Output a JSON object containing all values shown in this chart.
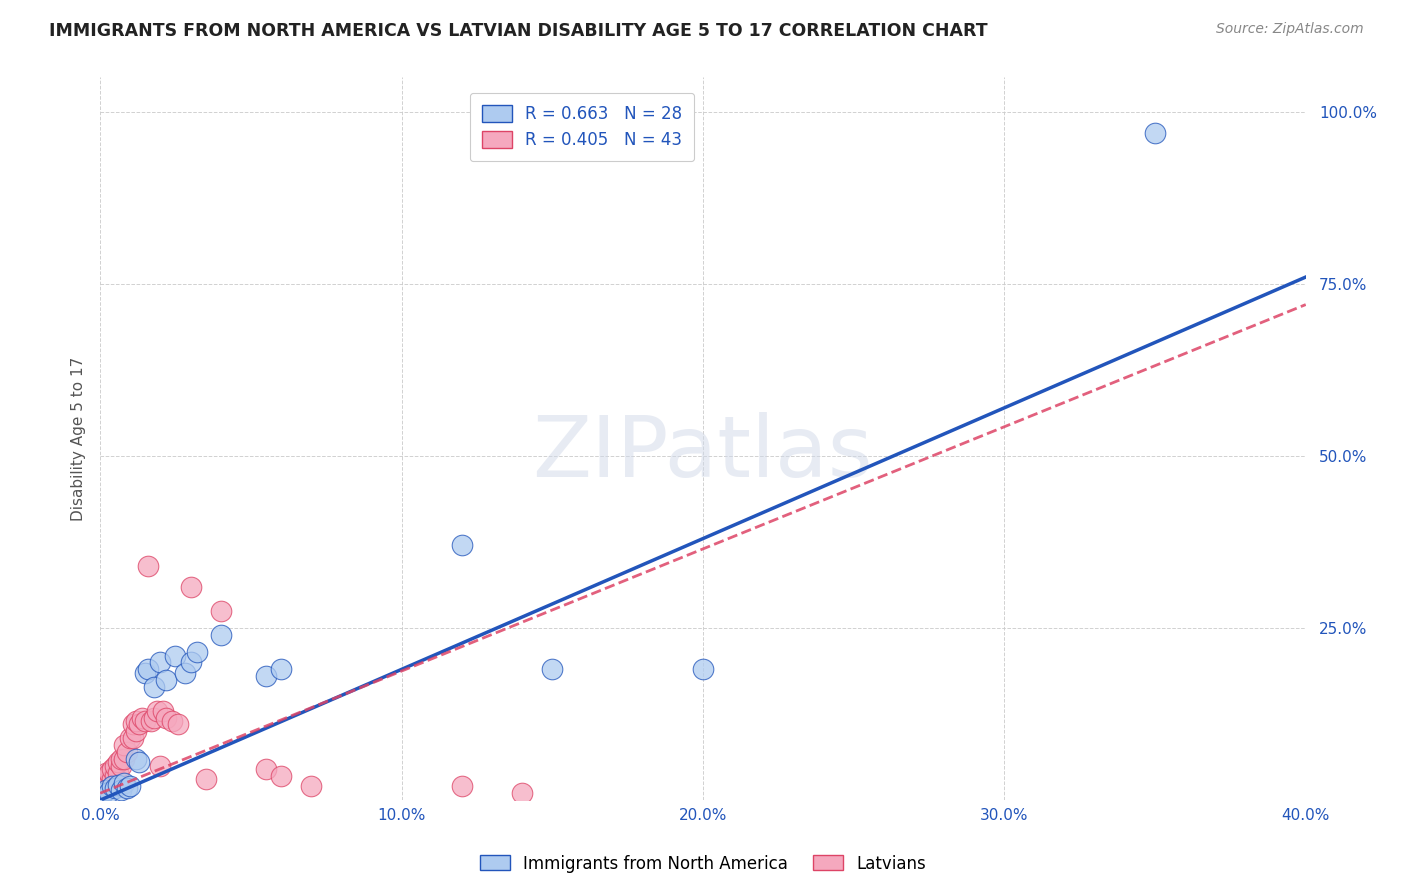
{
  "title": "IMMIGRANTS FROM NORTH AMERICA VS LATVIAN DISABILITY AGE 5 TO 17 CORRELATION CHART",
  "source": "Source: ZipAtlas.com",
  "xlabel_label": "Immigrants from North America",
  "ylabel_label": "Disability Age 5 to 17",
  "xlim": [
    0.0,
    0.4
  ],
  "ylim": [
    0.0,
    1.05
  ],
  "xticks": [
    0.0,
    0.1,
    0.2,
    0.3,
    0.4
  ],
  "xtick_labels": [
    "0.0%",
    "10.0%",
    "20.0%",
    "30.0%",
    "40.0%"
  ],
  "ytick_labels": [
    "100.0%",
    "75.0%",
    "50.0%",
    "25.0%"
  ],
  "ytick_positions": [
    1.0,
    0.75,
    0.5,
    0.25
  ],
  "blue_R": 0.663,
  "blue_N": 28,
  "pink_R": 0.405,
  "pink_N": 43,
  "blue_color": "#aecbf0",
  "pink_color": "#f5a8be",
  "blue_line_color": "#2255bb",
  "pink_line_color": "#dd4466",
  "watermark_text": "ZIPatlas",
  "blue_line_x": [
    0.0,
    0.4
  ],
  "blue_line_y": [
    0.0,
    0.76
  ],
  "pink_line_x": [
    0.0,
    0.4
  ],
  "pink_line_y": [
    0.01,
    0.72
  ],
  "blue_scatter_x": [
    0.001,
    0.002,
    0.003,
    0.004,
    0.005,
    0.006,
    0.007,
    0.008,
    0.009,
    0.01,
    0.012,
    0.013,
    0.015,
    0.016,
    0.018,
    0.02,
    0.022,
    0.025,
    0.028,
    0.03,
    0.032,
    0.04,
    0.055,
    0.06,
    0.12,
    0.15,
    0.2,
    0.35
  ],
  "blue_scatter_y": [
    0.01,
    0.015,
    0.012,
    0.02,
    0.018,
    0.022,
    0.015,
    0.025,
    0.018,
    0.02,
    0.06,
    0.055,
    0.185,
    0.19,
    0.165,
    0.2,
    0.175,
    0.21,
    0.185,
    0.2,
    0.215,
    0.24,
    0.18,
    0.19,
    0.37,
    0.19,
    0.19,
    0.97
  ],
  "pink_scatter_x": [
    0.0005,
    0.001,
    0.001,
    0.002,
    0.002,
    0.003,
    0.003,
    0.004,
    0.004,
    0.005,
    0.005,
    0.006,
    0.006,
    0.007,
    0.007,
    0.008,
    0.008,
    0.009,
    0.01,
    0.011,
    0.011,
    0.012,
    0.012,
    0.013,
    0.014,
    0.015,
    0.016,
    0.017,
    0.018,
    0.019,
    0.02,
    0.021,
    0.022,
    0.024,
    0.026,
    0.03,
    0.035,
    0.04,
    0.055,
    0.06,
    0.07,
    0.12,
    0.14
  ],
  "pink_scatter_y": [
    0.02,
    0.018,
    0.03,
    0.025,
    0.04,
    0.025,
    0.04,
    0.03,
    0.045,
    0.035,
    0.05,
    0.04,
    0.055,
    0.05,
    0.06,
    0.06,
    0.08,
    0.07,
    0.09,
    0.09,
    0.11,
    0.1,
    0.115,
    0.11,
    0.12,
    0.115,
    0.34,
    0.115,
    0.12,
    0.13,
    0.05,
    0.13,
    0.12,
    0.115,
    0.11,
    0.31,
    0.03,
    0.275,
    0.045,
    0.035,
    0.02,
    0.02,
    0.01
  ]
}
